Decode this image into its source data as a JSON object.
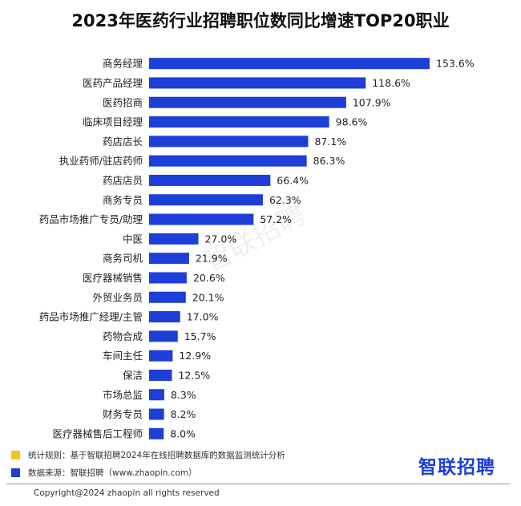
{
  "title": "2023年医药行业招聘职位数同比增速TOP20职业",
  "watermark": "智联招聘",
  "notes": [
    {
      "text": "统计规则：基于智联招聘2024年在线招聘数据库的数据监测统计分析",
      "color": "#f5c518"
    },
    {
      "text": "数据来源：智联招聘（www.zhaopin.com）",
      "color": "#1d3fd8"
    }
  ],
  "brand": "智联招聘",
  "copyright": "Copyright@2024 zhaopin all rights reserved",
  "colors": {
    "bar": "#1d3fd8"
  },
  "chart_data": {
    "type": "bar",
    "orientation": "horizontal",
    "title": "2023年医药行业招聘职位数同比增速TOP20职业",
    "categories": [
      "商务经理",
      "医药产品经理",
      "医药招商",
      "临床项目经理",
      "药店店长",
      "执业药师/驻店药师",
      "药店店员",
      "商务专员",
      "药品市场推广专员/助理",
      "中医",
      "商务司机",
      "医疗器械销售",
      "外贸业务员",
      "药品市场推广经理/主管",
      "药物合成",
      "车间主任",
      "保洁",
      "市场总监",
      "财务专员",
      "医疗器械售后工程师"
    ],
    "values": [
      153.6,
      118.6,
      107.9,
      98.6,
      87.1,
      86.3,
      66.4,
      62.3,
      57.2,
      27.0,
      21.9,
      20.6,
      20.1,
      17.0,
      15.7,
      12.9,
      12.5,
      8.3,
      8.2,
      8.0
    ],
    "value_labels": [
      "153.6%",
      "118.6%",
      "107.9%",
      "98.6%",
      "87.1%",
      "86.3%",
      "66.4%",
      "62.3%",
      "57.2%",
      "27.0%",
      "21.9%",
      "20.6%",
      "20.1%",
      "17.0%",
      "15.7%",
      "12.9%",
      "12.5%",
      "8.3%",
      "8.2%",
      "8.0%"
    ],
    "xlim": [
      0,
      153.6
    ],
    "grid": false,
    "legend": "none"
  }
}
